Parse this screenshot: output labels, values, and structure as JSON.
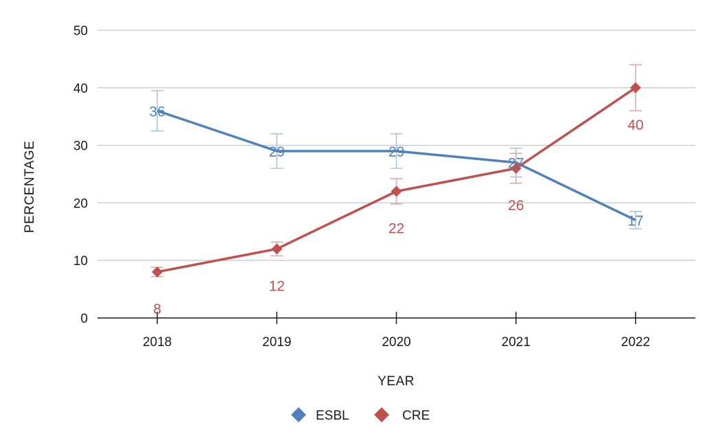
{
  "chart_data": {
    "type": "line",
    "xlabel": "YEAR",
    "ylabel": "PERCENTAGE",
    "ylim": [
      0,
      50
    ],
    "yticks": [
      "0",
      "10",
      "20",
      "30",
      "40",
      "50"
    ],
    "categories": [
      "2018",
      "2019",
      "2020",
      "2021",
      "2022"
    ],
    "grid": true,
    "legend_position": "bottom-center",
    "series": [
      {
        "name": "ESBL",
        "color": "#4f81bd",
        "errorbar_color": "#a9c4e0",
        "marker": "none",
        "values": [
          36,
          29,
          29,
          27,
          17
        ],
        "labels": [
          "36",
          "29",
          "29",
          "27",
          "17"
        ],
        "error_low": [
          32.5,
          26,
          26,
          24.5,
          15.5
        ],
        "error_high": [
          39.5,
          32,
          32,
          29.5,
          18.5
        ]
      },
      {
        "name": "CRE",
        "color": "#c0504d",
        "errorbar_color": "#e0a9a8",
        "marker": "diamond",
        "values": [
          8,
          12,
          22,
          26,
          40
        ],
        "labels": [
          "8",
          "12",
          "22",
          "26",
          "40"
        ],
        "error_low": [
          7.2,
          10.8,
          19.8,
          23.4,
          36
        ],
        "error_high": [
          8.8,
          13.2,
          24.2,
          28.6,
          44
        ]
      }
    ]
  }
}
